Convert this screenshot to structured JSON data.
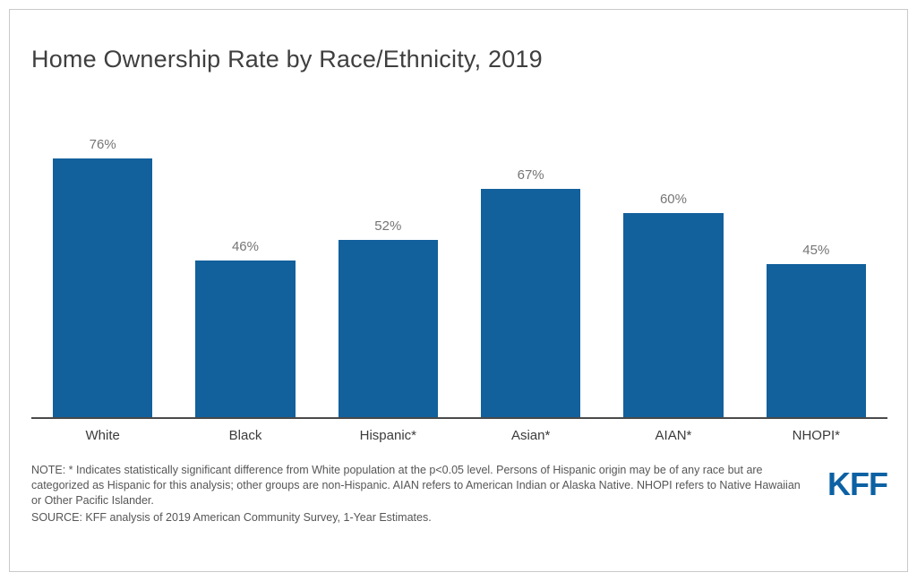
{
  "title": "Home Ownership Rate by Race/Ethnicity, 2019",
  "chart_data": {
    "type": "bar",
    "title": "Home Ownership Rate by Race/Ethnicity, 2019",
    "categories": [
      "White",
      "Black",
      "Hispanic*",
      "Asian*",
      "AIAN*",
      "NHOPI*"
    ],
    "values": [
      76,
      46,
      52,
      67,
      60,
      45
    ],
    "value_labels": [
      "76%",
      "46%",
      "52%",
      "67%",
      "60%",
      "45%"
    ],
    "xlabel": "",
    "ylabel": "",
    "ylim": [
      0,
      100
    ],
    "grid": false,
    "legend": false,
    "bar_color": "#12609c",
    "axis_color": "#4a4a4a",
    "value_label_color": "#757575"
  },
  "notes": {
    "note": "NOTE: * Indicates statistically significant difference from White population at the p<0.05 level. Persons of Hispanic origin may be of any race but are categorized as Hispanic for this analysis; other groups are non-Hispanic. AIAN refers to American Indian or Alaska Native. NHOPI refers to Native Hawaiian or Other Pacific Islander.",
    "source": "SOURCE: KFF analysis of 2019 American Community Survey, 1-Year Estimates."
  },
  "logo": {
    "text": "KFF",
    "color": "#0b61a4"
  }
}
